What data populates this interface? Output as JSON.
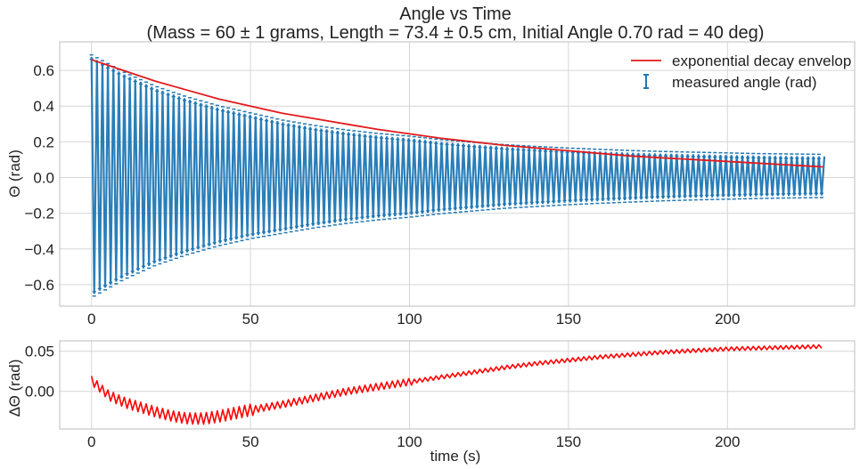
{
  "chart_data": [
    {
      "type": "scatter",
      "title": "Angle vs Time",
      "subtitle": "(Mass = 60 ± 1 grams, Length = 73.4 ± 0.5 cm, Initial Angle 0.70 rad = 40 deg)",
      "xlabel": "",
      "ylabel": "Θ (rad)",
      "xlim": [
        -10,
        240
      ],
      "ylim": [
        -0.72,
        0.76
      ],
      "xticks": [
        0,
        50,
        100,
        150,
        200
      ],
      "yticks": [
        -0.6,
        -0.4,
        -0.2,
        0.0,
        0.2,
        0.4,
        0.6
      ],
      "xtick_labels": [
        "0",
        "50",
        "100",
        "150",
        "200"
      ],
      "ytick_labels": [
        "−0.6",
        "−0.4",
        "−0.2",
        "0.0",
        "0.2",
        "0.4",
        "0.6"
      ],
      "grid": true,
      "legend_position": "top-right",
      "series": [
        {
          "name": "measured angle (rad)",
          "kind": "errorbar",
          "color": "#1f77b4",
          "period_s": 1.72,
          "offset_rad": 0.012,
          "x_range": [
            0,
            230
          ],
          "y_error_rad": 0.012,
          "envelope": {
            "t": [
              0,
              10,
              20,
              30,
              40,
              50,
              60,
              70,
              80,
              90,
              100,
              110,
              120,
              130,
              140,
              150,
              160,
              170,
              180,
              190,
              200,
              210,
              220,
              230
            ],
            "upper": [
              0.675,
              0.58,
              0.5,
              0.44,
              0.39,
              0.35,
              0.31,
              0.28,
              0.255,
              0.235,
              0.22,
              0.2,
              0.185,
              0.172,
              0.162,
              0.153,
              0.146,
              0.139,
              0.134,
              0.13,
              0.126,
              0.122,
              0.12,
              0.118
            ],
            "lower": [
              -0.66,
              -0.56,
              -0.48,
              -0.42,
              -0.37,
              -0.33,
              -0.3,
              -0.27,
              -0.245,
              -0.225,
              -0.21,
              -0.19,
              -0.175,
              -0.16,
              -0.15,
              -0.14,
              -0.132,
              -0.125,
              -0.118,
              -0.113,
              -0.109,
              -0.105,
              -0.102,
              -0.1
            ]
          }
        },
        {
          "name": "exponential decay envelop",
          "kind": "line",
          "color": "#e31a1c",
          "x": [
            0,
            10,
            20,
            30,
            40,
            50,
            60,
            70,
            80,
            90,
            100,
            110,
            120,
            130,
            140,
            150,
            160,
            170,
            180,
            190,
            200,
            210,
            220,
            230
          ],
          "y": [
            0.66,
            0.6,
            0.54,
            0.49,
            0.44,
            0.4,
            0.36,
            0.33,
            0.3,
            0.27,
            0.245,
            0.22,
            0.2,
            0.18,
            0.165,
            0.15,
            0.135,
            0.12,
            0.11,
            0.1,
            0.09,
            0.08,
            0.07,
            0.06
          ]
        }
      ]
    },
    {
      "type": "line",
      "title": "",
      "xlabel": "time (s)",
      "ylabel": "ΔΘ (rad)",
      "xlim": [
        -10,
        240
      ],
      "ylim": [
        -0.047,
        0.063
      ],
      "xticks": [
        0,
        50,
        100,
        150,
        200
      ],
      "yticks": [
        0.0,
        0.05
      ],
      "xtick_labels": [
        "0",
        "50",
        "100",
        "150",
        "200"
      ],
      "ytick_labels": [
        "0.00",
        "0.05"
      ],
      "grid": true,
      "series": [
        {
          "name": "",
          "color": "#ff0000",
          "sawtooth_period_s": 1.72,
          "x": [
            0,
            5,
            10,
            15,
            20,
            25,
            30,
            35,
            40,
            45,
            50,
            60,
            70,
            80,
            90,
            100,
            110,
            120,
            130,
            140,
            150,
            160,
            170,
            180,
            190,
            200,
            210,
            220,
            230
          ],
          "y": [
            0.012,
            -0.005,
            -0.014,
            -0.02,
            -0.026,
            -0.031,
            -0.034,
            -0.034,
            -0.031,
            -0.027,
            -0.023,
            -0.016,
            -0.008,
            0.0,
            0.006,
            0.012,
            0.018,
            0.024,
            0.03,
            0.035,
            0.039,
            0.043,
            0.046,
            0.049,
            0.051,
            0.053,
            0.054,
            0.055,
            0.056
          ]
        }
      ]
    }
  ]
}
